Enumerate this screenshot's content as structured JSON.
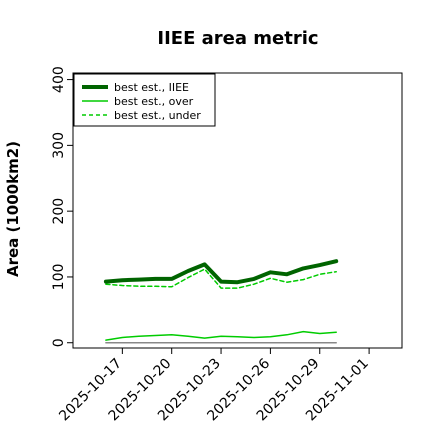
{
  "chart_data": {
    "type": "line",
    "title": "IIEE area metric",
    "xlabel": "",
    "ylabel": "Area (1000km2)",
    "x_type": "date",
    "xlim": [
      "2025-10-14",
      "2025-11-03"
    ],
    "ylim": [
      -8,
      410
    ],
    "yticks": [
      0,
      100,
      200,
      300,
      400
    ],
    "ytick_labels": [
      "0",
      "100",
      "200",
      "300",
      "400"
    ],
    "xticks": [
      "2025-10-17",
      "2025-10-20",
      "2025-10-23",
      "2025-10-26",
      "2025-10-29",
      "2025-11-01"
    ],
    "xtick_labels": [
      "2025-10-17",
      "2025-10-20",
      "2025-10-23",
      "2025-10-26",
      "2025-10-29",
      "2025-11-01"
    ],
    "grid": false,
    "legend_position": "top-left",
    "x": [
      "2025-10-16",
      "2025-10-17",
      "2025-10-18",
      "2025-10-19",
      "2025-10-20",
      "2025-10-21",
      "2025-10-22",
      "2025-10-23",
      "2025-10-24",
      "2025-10-25",
      "2025-10-26",
      "2025-10-27",
      "2025-10-28",
      "2025-10-29",
      "2025-10-30"
    ],
    "series": [
      {
        "name": "best est., IIEE",
        "color": "#006400",
        "style": "solid-thick",
        "values": [
          93,
          95,
          96,
          97,
          97,
          109,
          119,
          93,
          92,
          97,
          107,
          104,
          113,
          118,
          124
        ]
      },
      {
        "name": "best est., over",
        "color": "#00cc00",
        "style": "solid",
        "values": [
          4,
          8,
          10,
          11,
          12,
          10,
          7,
          10,
          9,
          8,
          9,
          12,
          17,
          14,
          16
        ]
      },
      {
        "name": "best est., under",
        "color": "#00cc00",
        "style": "dashed",
        "values": [
          89,
          87,
          86,
          86,
          85,
          99,
          112,
          83,
          83,
          89,
          98,
          92,
          96,
          104,
          108
        ]
      },
      {
        "name": "",
        "color": "#888888",
        "style": "thin",
        "values": [
          0,
          0,
          0,
          0,
          0,
          0,
          0,
          0,
          0,
          0,
          0,
          0,
          0,
          0,
          0
        ]
      }
    ]
  }
}
